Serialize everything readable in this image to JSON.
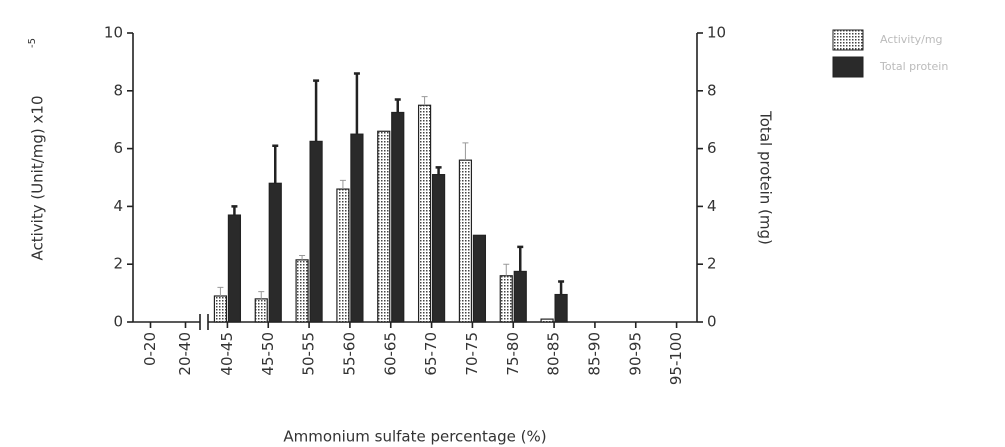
{
  "chart_data": {
    "type": "bar",
    "x_label": "Ammonium sulfate percentage (%)",
    "y_label": "Activity (Unit/mg) x10",
    "y_label_superscript": "-5",
    "y2_label": "Total protein (mg)",
    "categories": [
      "0-20",
      "20-40",
      "40-45",
      "45-50",
      "50-55",
      "55-60",
      "60-65",
      "65-70",
      "70-75",
      "75-80",
      "80-85",
      "85-90",
      "90-95",
      "95-100"
    ],
    "x_break_after_index": 1,
    "series": [
      {
        "name": "Activity/mg",
        "color": "#ffffff",
        "pattern": "crosshatch",
        "values": [
          0,
          0,
          0.9,
          0.8,
          2.15,
          4.6,
          6.6,
          7.5,
          5.6,
          1.6,
          0.1,
          0,
          0,
          0
        ],
        "errors": [
          0,
          0,
          0.3,
          0.25,
          0.15,
          0.3,
          0,
          0.3,
          0.6,
          0.4,
          0,
          0,
          0,
          0
        ]
      },
      {
        "name": "Total protein",
        "color": "#2a2a2a",
        "axis": "y2",
        "values": [
          0,
          0,
          3.7,
          4.8,
          6.25,
          6.5,
          7.25,
          5.1,
          3.0,
          1.75,
          0.95,
          0,
          0,
          0
        ],
        "errors": [
          0,
          0,
          0.3,
          1.3,
          2.1,
          2.1,
          0.45,
          0.25,
          0,
          0.85,
          0.45,
          0,
          0,
          0
        ]
      }
    ],
    "ylim": [
      0,
      10
    ],
    "yticks": [
      0,
      2,
      4,
      6,
      8,
      10
    ],
    "y2lim": [
      0,
      10
    ],
    "y2ticks": [
      0,
      2,
      4,
      6,
      8,
      10
    ]
  }
}
